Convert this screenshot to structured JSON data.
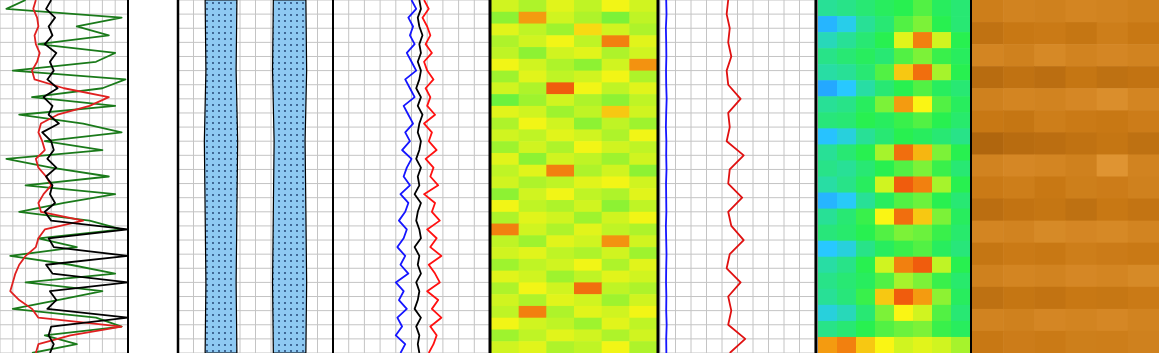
{
  "chart_data": [
    {
      "type": "line",
      "grid": true,
      "tick_labels": false,
      "xlim": [
        0,
        10
      ],
      "xticks": [
        0,
        1,
        2,
        3,
        4,
        5,
        6,
        7,
        8,
        9,
        10
      ],
      "ylim": [
        0,
        100
      ],
      "yticks": [
        0,
        4,
        8,
        12,
        16,
        20,
        24,
        28,
        32,
        36,
        40,
        44,
        48,
        52,
        56,
        60,
        64,
        68,
        72,
        76,
        80,
        84,
        88,
        92,
        96,
        100
      ],
      "y": [
        0,
        2.5,
        5,
        7.5,
        10,
        12.5,
        15,
        17.5,
        20,
        22.5,
        25,
        27.5,
        30,
        32.5,
        35,
        37.5,
        40,
        42.5,
        45,
        47.5,
        50,
        52.5,
        55,
        57.5,
        60,
        62.5,
        65,
        67.5,
        70,
        72.5,
        75,
        77.5,
        80,
        82.5,
        85,
        87.5,
        90,
        92.5,
        95,
        97.5,
        100
      ],
      "series": [
        {
          "color": "#1a7a1a",
          "values": [
            2.0,
            0.5,
            9.5,
            6.0,
            8.5,
            3.0,
            9.0,
            7.5,
            1.0,
            9.8,
            8.0,
            2.5,
            9.0,
            1.5,
            6.5,
            9.5,
            3.5,
            8.0,
            0.5,
            4.0,
            8.5,
            2.0,
            9.0,
            5.0,
            1.5,
            7.0,
            9.5,
            3.0,
            6.0,
            0.8,
            5.5,
            9.0,
            2.0,
            8.0,
            4.5,
            1.0,
            7.5,
            9.5,
            3.5,
            6.0,
            2.5
          ]
        },
        {
          "color": "#e02020",
          "values": [
            2.8,
            2.6,
            2.9,
            3.0,
            2.7,
            2.8,
            3.1,
            2.9,
            2.5,
            2.7,
            5.0,
            8.5,
            7.0,
            4.5,
            3.2,
            3.0,
            3.3,
            3.5,
            2.8,
            3.0,
            3.6,
            4.0,
            3.4,
            3.0,
            3.2,
            6.5,
            3.5,
            3.0,
            2.8,
            2.0,
            1.5,
            1.2,
            1.0,
            0.8,
            1.5,
            2.5,
            3.0,
            9.5,
            5.5,
            3.0,
            2.8
          ]
        },
        {
          "color": "#000000",
          "values": [
            4.0,
            3.6,
            4.3,
            3.8,
            4.1,
            3.5,
            4.4,
            3.9,
            4.2,
            3.7,
            4.5,
            3.4,
            4.1,
            3.8,
            4.6,
            3.3,
            4.0,
            4.2,
            3.7,
            4.4,
            3.6,
            4.1,
            3.9,
            4.3,
            3.5,
            4.0,
            10.0,
            3.8,
            4.2,
            10.0,
            3.6,
            4.1,
            10.0,
            3.9,
            4.4,
            3.7,
            10.0,
            4.0,
            3.8,
            4.2,
            3.9
          ]
        }
      ]
    },
    {
      "type": "band",
      "grid": true,
      "tick_labels": false,
      "xlim": [
        0,
        10
      ],
      "xticks": [
        0,
        1,
        2,
        3,
        4,
        5,
        6,
        7,
        8,
        9,
        10
      ],
      "ylim": [
        0,
        100
      ],
      "yticks": [
        0,
        4,
        8,
        12,
        16,
        20,
        24,
        28,
        32,
        36,
        40,
        44,
        48,
        52,
        56,
        60,
        64,
        68,
        72,
        76,
        80,
        84,
        88,
        92,
        96,
        100
      ],
      "y": [
        0,
        20,
        40,
        60,
        80,
        100
      ],
      "series": [
        {
          "color": "#8ec9f2",
          "low": [
            1.75,
            1.8,
            1.7,
            1.75,
            1.8,
            1.75
          ],
          "high": [
            3.8,
            3.75,
            3.85,
            3.8,
            3.75,
            3.8
          ]
        },
        {
          "color": "#8ec9f2",
          "low": [
            6.15,
            6.1,
            6.2,
            6.15,
            6.1,
            6.15
          ],
          "high": [
            8.25,
            8.3,
            8.2,
            8.25,
            8.3,
            8.25
          ]
        }
      ]
    },
    {
      "type": "line",
      "grid": true,
      "tick_labels": false,
      "xlim": [
        0,
        10
      ],
      "xticks": [
        0,
        1,
        2,
        3,
        4,
        5,
        6,
        7,
        8,
        9,
        10
      ],
      "ylim": [
        0,
        100
      ],
      "yticks": [
        0,
        4,
        8,
        12,
        16,
        20,
        24,
        28,
        32,
        36,
        40,
        44,
        48,
        52,
        56,
        60,
        64,
        68,
        72,
        76,
        80,
        84,
        88,
        92,
        96,
        100
      ],
      "y": [
        0,
        2.5,
        5,
        7.5,
        10,
        12.5,
        15,
        17.5,
        20,
        22.5,
        25,
        27.5,
        30,
        32.5,
        35,
        37.5,
        40,
        42.5,
        45,
        47.5,
        50,
        52.5,
        55,
        57.5,
        60,
        62.5,
        65,
        67.5,
        70,
        72.5,
        75,
        77.5,
        80,
        82.5,
        85,
        87.5,
        90,
        92.5,
        95,
        97.5,
        100
      ],
      "series": [
        {
          "color": "#1515ff",
          "values": [
            5.0,
            5.3,
            4.8,
            5.1,
            4.9,
            5.2,
            4.7,
            5.0,
            5.3,
            4.6,
            4.9,
            5.2,
            4.5,
            4.8,
            5.1,
            4.6,
            4.9,
            4.4,
            5.0,
            4.7,
            4.5,
            4.9,
            4.3,
            4.8,
            4.6,
            4.2,
            4.7,
            4.5,
            4.1,
            4.6,
            4.3,
            4.8,
            4.0,
            4.5,
            4.2,
            4.7,
            4.1,
            4.4,
            4.0,
            4.6,
            4.3
          ]
        },
        {
          "color": "#ff1010",
          "values": [
            5.8,
            6.1,
            5.7,
            6.0,
            6.2,
            5.9,
            6.3,
            5.8,
            6.0,
            6.4,
            5.9,
            6.2,
            6.0,
            6.5,
            5.8,
            6.3,
            6.1,
            6.6,
            5.9,
            6.4,
            6.2,
            6.7,
            5.8,
            6.5,
            6.3,
            6.8,
            6.0,
            6.6,
            6.2,
            6.9,
            6.1,
            6.5,
            6.8,
            6.0,
            6.7,
            6.3,
            6.9,
            6.2,
            6.6,
            6.4,
            6.1
          ]
        },
        {
          "color": "#000000",
          "values": [
            5.5,
            5.6,
            5.4,
            5.5,
            5.7,
            5.5,
            5.6,
            5.4,
            5.6,
            5.5,
            5.3,
            5.6,
            5.4,
            5.7,
            5.5,
            5.4,
            5.6,
            5.5,
            5.3,
            5.6,
            5.4,
            5.5,
            5.2,
            5.6,
            5.4,
            5.3,
            5.5,
            5.6,
            5.2,
            5.5,
            5.4,
            5.6,
            5.3,
            5.5,
            5.4,
            5.2,
            5.6,
            5.3,
            5.5,
            5.4,
            5.5
          ]
        }
      ]
    },
    {
      "type": "heatmap",
      "tick_labels": false,
      "ylim": [
        0,
        100
      ],
      "color_lim": [
        0,
        1
      ],
      "cells": [
        [
          0.7,
          0.66,
          0.72,
          0.68,
          0.74,
          0.7
        ],
        [
          0.62,
          0.85,
          0.7,
          0.66,
          0.6,
          0.68
        ],
        [
          0.72,
          0.68,
          0.64,
          0.78,
          0.7,
          0.66
        ],
        [
          0.66,
          0.7,
          0.74,
          0.68,
          0.88,
          0.72
        ],
        [
          0.68,
          0.62,
          0.7,
          0.72,
          0.66,
          0.7
        ],
        [
          0.74,
          0.7,
          0.66,
          0.62,
          0.7,
          0.86
        ],
        [
          0.64,
          0.72,
          0.68,
          0.7,
          0.74,
          0.66
        ],
        [
          0.7,
          0.66,
          0.92,
          0.74,
          0.68,
          0.72
        ],
        [
          0.58,
          0.64,
          0.7,
          0.66,
          0.62,
          0.68
        ],
        [
          0.72,
          0.7,
          0.64,
          0.68,
          0.8,
          0.7
        ],
        [
          0.66,
          0.74,
          0.7,
          0.62,
          0.68,
          0.64
        ],
        [
          0.7,
          0.68,
          0.72,
          0.7,
          0.66,
          0.74
        ],
        [
          0.64,
          0.7,
          0.66,
          0.74,
          0.7,
          0.68
        ],
        [
          0.72,
          0.62,
          0.7,
          0.68,
          0.64,
          0.7
        ],
        [
          0.68,
          0.72,
          0.88,
          0.66,
          0.7,
          0.62
        ],
        [
          0.7,
          0.66,
          0.68,
          0.72,
          0.74,
          0.7
        ],
        [
          0.62,
          0.7,
          0.74,
          0.68,
          0.66,
          0.72
        ],
        [
          0.74,
          0.68,
          0.66,
          0.7,
          0.62,
          0.68
        ],
        [
          0.66,
          0.72,
          0.7,
          0.64,
          0.7,
          0.74
        ],
        [
          0.88,
          0.7,
          0.66,
          0.72,
          0.68,
          0.66
        ],
        [
          0.68,
          0.64,
          0.72,
          0.7,
          0.86,
          0.7
        ],
        [
          0.7,
          0.72,
          0.68,
          0.66,
          0.7,
          0.64
        ],
        [
          0.64,
          0.68,
          0.7,
          0.74,
          0.66,
          0.72
        ],
        [
          0.72,
          0.7,
          0.64,
          0.68,
          0.72,
          0.7
        ],
        [
          0.66,
          0.74,
          0.7,
          0.9,
          0.68,
          0.66
        ],
        [
          0.7,
          0.66,
          0.72,
          0.7,
          0.64,
          0.7
        ],
        [
          0.68,
          0.88,
          0.66,
          0.72,
          0.7,
          0.74
        ],
        [
          0.74,
          0.7,
          0.68,
          0.64,
          0.72,
          0.68
        ],
        [
          0.64,
          0.68,
          0.72,
          0.7,
          0.66,
          0.7
        ],
        [
          0.7,
          0.72,
          0.66,
          0.68,
          0.74,
          0.66
        ]
      ]
    },
    {
      "type": "line",
      "grid": true,
      "tick_labels": false,
      "xlim": [
        0,
        10
      ],
      "xticks": [
        0,
        1,
        2,
        3,
        4,
        5,
        6,
        7,
        8,
        9,
        10
      ],
      "ylim": [
        0,
        100
      ],
      "yticks": [
        0,
        4,
        8,
        12,
        16,
        20,
        24,
        28,
        32,
        36,
        40,
        44,
        48,
        52,
        56,
        60,
        64,
        68,
        72,
        76,
        80,
        84,
        88,
        92,
        96,
        100
      ],
      "y": [
        0,
        4,
        8,
        12,
        16,
        20,
        24,
        28,
        32,
        36,
        40,
        44,
        48,
        52,
        56,
        60,
        64,
        68,
        72,
        76,
        80,
        84,
        88,
        92,
        96,
        100
      ],
      "series": [
        {
          "color": "#1515ff",
          "values": [
            0.4,
            0.42,
            0.38,
            0.4,
            0.41,
            0.39,
            0.4,
            0.43,
            0.4,
            0.38,
            0.41,
            0.4,
            0.42,
            0.39,
            0.4,
            0.41,
            0.38,
            0.4,
            0.42,
            0.4,
            0.39,
            0.41,
            0.4,
            0.43,
            0.4,
            0.41
          ]
        },
        {
          "color": "#e01010",
          "values": [
            4.4,
            4.3,
            4.5,
            4.4,
            4.6,
            4.3,
            4.4,
            5.2,
            4.4,
            4.5,
            4.3,
            5.4,
            4.5,
            4.4,
            5.3,
            4.4,
            4.6,
            5.4,
            4.5,
            4.3,
            5.2,
            4.4,
            4.6,
            4.4,
            5.5,
            4.5
          ]
        }
      ]
    },
    {
      "type": "heatmap",
      "tick_labels": false,
      "ylim": [
        0,
        100
      ],
      "color_lim": [
        0,
        1
      ],
      "cells": [
        [
          0.4,
          0.42,
          0.45,
          0.48,
          0.5,
          0.55,
          0.48,
          0.45
        ],
        [
          0.22,
          0.28,
          0.4,
          0.45,
          0.55,
          0.6,
          0.5,
          0.45
        ],
        [
          0.35,
          0.4,
          0.45,
          0.5,
          0.72,
          0.88,
          0.7,
          0.5
        ],
        [
          0.42,
          0.45,
          0.48,
          0.45,
          0.55,
          0.6,
          0.52,
          0.48
        ],
        [
          0.38,
          0.4,
          0.45,
          0.55,
          0.8,
          0.9,
          0.65,
          0.5
        ],
        [
          0.2,
          0.25,
          0.38,
          0.45,
          0.5,
          0.55,
          0.48,
          0.45
        ],
        [
          0.4,
          0.42,
          0.48,
          0.6,
          0.85,
          0.75,
          0.55,
          0.48
        ],
        [
          0.44,
          0.45,
          0.5,
          0.48,
          0.52,
          0.55,
          0.5,
          0.46
        ],
        [
          0.24,
          0.3,
          0.4,
          0.45,
          0.5,
          0.48,
          0.45,
          0.42
        ],
        [
          0.4,
          0.45,
          0.5,
          0.65,
          0.9,
          0.82,
          0.6,
          0.5
        ],
        [
          0.42,
          0.4,
          0.45,
          0.5,
          0.55,
          0.6,
          0.52,
          0.45
        ],
        [
          0.38,
          0.42,
          0.48,
          0.7,
          0.92,
          0.88,
          0.65,
          0.5
        ],
        [
          0.22,
          0.26,
          0.4,
          0.48,
          0.55,
          0.58,
          0.5,
          0.45
        ],
        [
          0.4,
          0.45,
          0.52,
          0.75,
          0.9,
          0.8,
          0.6,
          0.48
        ],
        [
          0.44,
          0.46,
          0.5,
          0.55,
          0.6,
          0.58,
          0.52,
          0.46
        ],
        [
          0.25,
          0.3,
          0.42,
          0.48,
          0.52,
          0.55,
          0.48,
          0.44
        ],
        [
          0.38,
          0.42,
          0.5,
          0.7,
          0.88,
          0.92,
          0.68,
          0.5
        ],
        [
          0.42,
          0.45,
          0.48,
          0.55,
          0.65,
          0.6,
          0.52,
          0.46
        ],
        [
          0.4,
          0.44,
          0.52,
          0.8,
          0.92,
          0.85,
          0.62,
          0.48
        ],
        [
          0.3,
          0.35,
          0.45,
          0.6,
          0.75,
          0.7,
          0.55,
          0.45
        ],
        [
          0.42,
          0.45,
          0.5,
          0.55,
          0.58,
          0.6,
          0.52,
          0.48
        ],
        [
          0.85,
          0.88,
          0.8,
          0.75,
          0.7,
          0.72,
          0.7,
          0.65
        ]
      ]
    },
    {
      "type": "image",
      "tick_labels": false,
      "ylim": [
        0,
        100
      ],
      "color_lim": [
        0,
        1
      ],
      "cells": [
        [
          0.55,
          0.6,
          0.58,
          0.62,
          0.6,
          0.57
        ],
        [
          0.45,
          0.5,
          0.52,
          0.48,
          0.55,
          0.5
        ],
        [
          0.62,
          0.58,
          0.65,
          0.6,
          0.63,
          0.6
        ],
        [
          0.4,
          0.45,
          0.42,
          0.48,
          0.44,
          0.46
        ],
        [
          0.58,
          0.62,
          0.6,
          0.64,
          0.7,
          0.62
        ],
        [
          0.5,
          0.48,
          0.55,
          0.52,
          0.5,
          0.54
        ],
        [
          0.35,
          0.4,
          0.42,
          0.45,
          0.48,
          0.44
        ],
        [
          0.6,
          0.64,
          0.62,
          0.58,
          0.75,
          0.6
        ],
        [
          0.52,
          0.55,
          0.5,
          0.56,
          0.54,
          0.58
        ],
        [
          0.42,
          0.46,
          0.48,
          0.44,
          0.5,
          0.47
        ],
        [
          0.62,
          0.6,
          0.66,
          0.63,
          0.65,
          0.61
        ],
        [
          0.48,
          0.52,
          0.5,
          0.55,
          0.53,
          0.51
        ],
        [
          0.58,
          0.62,
          0.6,
          0.64,
          0.62,
          0.66
        ],
        [
          0.44,
          0.48,
          0.46,
          0.5,
          0.49,
          0.52
        ],
        [
          0.6,
          0.58,
          0.63,
          0.61,
          0.64,
          0.6
        ],
        [
          0.5,
          0.54,
          0.52,
          0.56,
          0.55,
          0.58
        ]
      ]
    }
  ]
}
